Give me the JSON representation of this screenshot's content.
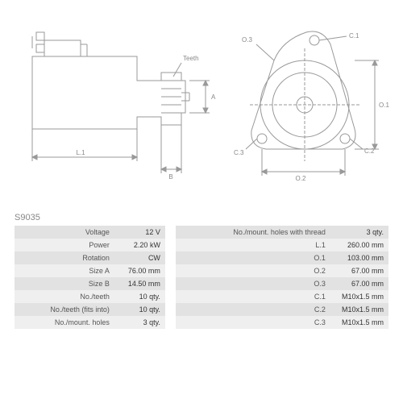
{
  "part_id": "S9035",
  "diagram": {
    "type": "engineering-drawing",
    "stroke": "#999999",
    "stroke_width": 1,
    "label_color": "#888888",
    "label_fontsize": 8,
    "labels": {
      "teeth": "Teeth",
      "A": "A",
      "B": "B",
      "L1": "L.1",
      "O1": "O.1",
      "O2": "O.2",
      "O3": "O.3",
      "C1": "C.1",
      "C2": "C.2",
      "C3": "C.3"
    }
  },
  "specs_left": [
    {
      "label": "Voltage",
      "value": "12 V"
    },
    {
      "label": "Power",
      "value": "2.20 kW"
    },
    {
      "label": "Rotation",
      "value": "CW"
    },
    {
      "label": "Size A",
      "value": "76.00 mm"
    },
    {
      "label": "Size B",
      "value": "14.50 mm"
    },
    {
      "label": "No./teeth",
      "value": "10 qty."
    },
    {
      "label": "No./teeth (fits into)",
      "value": "10 qty."
    },
    {
      "label": "No./mount. holes",
      "value": "3 qty."
    }
  ],
  "specs_right": [
    {
      "label": "No./mount. holes with thread",
      "value": "3 qty."
    },
    {
      "label": "L.1",
      "value": "260.00 mm"
    },
    {
      "label": "O.1",
      "value": "103.00 mm"
    },
    {
      "label": "O.2",
      "value": "67.00 mm"
    },
    {
      "label": "O.3",
      "value": "67.00 mm"
    },
    {
      "label": "C.1",
      "value": "M10x1.5 mm"
    },
    {
      "label": "C.2",
      "value": "M10x1.5 mm"
    },
    {
      "label": "C.3",
      "value": "M10x1.5 mm"
    }
  ],
  "table_style": {
    "odd_bg": "#e2e2e2",
    "even_bg": "#efefef",
    "font_size": 9
  }
}
